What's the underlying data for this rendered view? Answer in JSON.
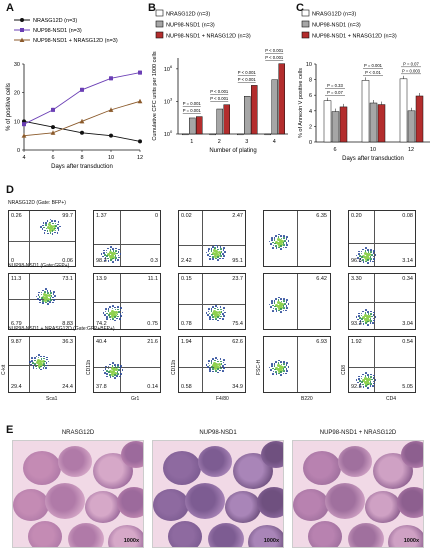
{
  "panels": {
    "A": {
      "letter": "A",
      "legend": [
        "NRASG12D (n=3)",
        "NUP98-NSD1 (n=3)",
        "NUP98-NSD1 + NRASG12D (n=3)"
      ],
      "xlabel": "Days after transduction",
      "ylabel": "% of positive cells",
      "x_ticks": [
        "4",
        "6",
        "8",
        "10",
        "12"
      ],
      "y_ticks": [
        "0",
        "10",
        "20",
        "30"
      ]
    },
    "B": {
      "letter": "B",
      "legend": [
        "NRASG12D (n=3)",
        "NUP98-NSD1 (n=3)",
        "NUP98-NSD1 + NRASG12D (n=3)"
      ],
      "xlabel": "Number of plating",
      "ylabel": "Cumulative CFC units per 1000 cells",
      "x_ticks": [
        "1",
        "2",
        "3",
        "4"
      ],
      "y_ticks": [
        "10",
        "10",
        "10"
      ],
      "y_exp": [
        "0",
        "3",
        "6"
      ],
      "pvals": [
        "P = 0.001",
        "P = 0.001",
        "P < 0.001",
        "P < 0.001",
        "P < 0.001",
        "P < 0.001",
        "P < 0.001",
        "P < 0.001"
      ]
    },
    "C": {
      "letter": "C",
      "legend": [
        "NRASG12D (n=3)",
        "NUP98-NSD1 (n=3)",
        "NUP98-NSD1 + NRASG12D (n=3)"
      ],
      "xlabel": "Days after transduction",
      "ylabel": "% of Annexin V positive cells",
      "x_ticks": [
        "6",
        "10",
        "12"
      ],
      "y_ticks": [
        "0",
        "2",
        "4",
        "6",
        "8",
        "10"
      ],
      "pvals": [
        "P = 0.33",
        "P = 0.07",
        "P = 0.001",
        "P < 0.01",
        "P = 0.07",
        "P = 0.003"
      ]
    },
    "D": {
      "letter": "D",
      "row_titles": [
        "NRASG12D (Gate: BFP+)",
        "NUP98-NSD1 (Gate:GFP+)",
        "NUP98-NSD1 + NRASG12D (Gate:GFP+BFP+)"
      ],
      "x_axes": [
        "Sca1",
        "Gr1",
        "F4/80",
        "B220",
        "CD4"
      ],
      "y_axes": [
        "C-kit",
        "CD11b",
        "CD11b",
        "FSC-H",
        "CD8"
      ],
      "rows": [
        [
          [
            "0.26",
            "99.7",
            "0",
            "0.06"
          ],
          [
            "1.37",
            "0",
            "98.3",
            "0.3"
          ],
          [
            "0.02",
            "2.47",
            "2.42",
            "95.1"
          ],
          [
            "6.35"
          ],
          [
            "0.20",
            "0.08",
            "96.6",
            "3.14"
          ]
        ],
        [
          [
            "11.3",
            "73.1",
            "6.79",
            "8.83"
          ],
          [
            "13.9",
            "11.1",
            "74.2",
            "0.75"
          ],
          [
            "0.15",
            "23.7",
            "0.78",
            "75.4"
          ],
          [
            "6.42"
          ],
          [
            "3.30",
            "0.34",
            "93.3",
            "3.04"
          ]
        ],
        [
          [
            "9.87",
            "36.3",
            "29.4",
            "24.4"
          ],
          [
            "40.4",
            "21.6",
            "37.8",
            "0.14"
          ],
          [
            "1.94",
            "62.6",
            "0.58",
            "34.9"
          ],
          [
            "6.93"
          ],
          [
            "1.92",
            "0.54",
            "92.5",
            "5.05"
          ]
        ]
      ]
    },
    "E": {
      "letter": "E",
      "titles": [
        "NRASG12D",
        "NUP98-NSD1",
        "NUP98-NSD1 + NRASG12D"
      ],
      "mag": "1000x"
    }
  },
  "colors": {
    "nras": "#ffffff",
    "nup98": "#a6a6a6",
    "combo": "#b32d2d",
    "lineA_nras": "#111111",
    "lineA_nup98": "#6b3fb5",
    "lineA_combo": "#8b5a2b",
    "axis": "#1f3a93"
  },
  "chart_data": [
    {
      "type": "line",
      "x": [
        4,
        6,
        8,
        10,
        12
      ],
      "xlabel": "Days after transduction",
      "ylabel": "% of positive cells",
      "ylim": [
        0,
        30
      ],
      "series": [
        {
          "name": "NRASG12D (n=3)",
          "values": [
            10,
            8,
            6,
            5,
            3
          ]
        },
        {
          "name": "NUP98-NSD1 (n=3)",
          "values": [
            9,
            14,
            21,
            25,
            27
          ]
        },
        {
          "name": "NUP98-NSD1 + NRASG12D (n=3)",
          "values": [
            5,
            6,
            10,
            14,
            17
          ]
        }
      ]
    },
    {
      "type": "bar",
      "categories": [
        "1",
        "2",
        "3",
        "4"
      ],
      "xlabel": "Number of plating",
      "ylabel": "Cumulative CFC units per 1000 cells",
      "scale": "log",
      "series": [
        {
          "name": "NRASG12D (n=3)",
          "values": [
            1,
            1,
            1,
            1
          ]
        },
        {
          "name": "NUP98-NSD1 (n=3)",
          "values": [
            30,
            200,
            3000,
            100000
          ]
        },
        {
          "name": "NUP98-NSD1 + NRASG12D (n=3)",
          "values": [
            40,
            500,
            30000,
            3000000
          ]
        }
      ]
    },
    {
      "type": "bar",
      "categories": [
        "6",
        "10",
        "12"
      ],
      "xlabel": "Days after transduction",
      "ylabel": "% of Annexin V positive cells",
      "ylim": [
        0,
        10
      ],
      "series": [
        {
          "name": "NRASG12D (n=3)",
          "values": [
            5.3,
            7.9,
            8.1
          ]
        },
        {
          "name": "NUP98-NSD1 (n=3)",
          "values": [
            3.9,
            5.0,
            4.0
          ]
        },
        {
          "name": "NUP98-NSD1 + NRASG12D (n=3)",
          "values": [
            4.5,
            4.8,
            5.9
          ]
        }
      ]
    }
  ]
}
